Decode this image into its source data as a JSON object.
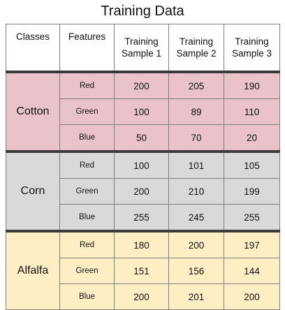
{
  "title": "Training Data",
  "headers": [
    "Classes",
    "Features",
    "Training\nSample 1",
    "Training\nSample 2",
    "Training\nSample 3"
  ],
  "classes": [
    {
      "name": "Cotton",
      "color": "#e9c2ca",
      "rows": [
        {
          "feature": "Red",
          "values": [
            "200",
            "205",
            "190"
          ]
        },
        {
          "feature": "Green",
          "values": [
            "100",
            "89",
            "110"
          ]
        },
        {
          "feature": "Blue",
          "values": [
            "50",
            "70",
            "20"
          ]
        }
      ]
    },
    {
      "name": "Corn",
      "color": "#d9d9d9",
      "rows": [
        {
          "feature": "Red",
          "values": [
            "100",
            "101",
            "105"
          ]
        },
        {
          "feature": "Green",
          "values": [
            "200",
            "210",
            "199"
          ]
        },
        {
          "feature": "Blue",
          "values": [
            "255",
            "245",
            "255"
          ]
        }
      ]
    },
    {
      "name": "Alfalfa",
      "color": "#fdeec3",
      "rows": [
        {
          "feature": "Red",
          "values": [
            "180",
            "200",
            "197"
          ]
        },
        {
          "feature": "Green",
          "values": [
            "151",
            "156",
            "144"
          ]
        },
        {
          "feature": "Blue",
          "values": [
            "200",
            "201",
            "200"
          ]
        }
      ]
    }
  ]
}
